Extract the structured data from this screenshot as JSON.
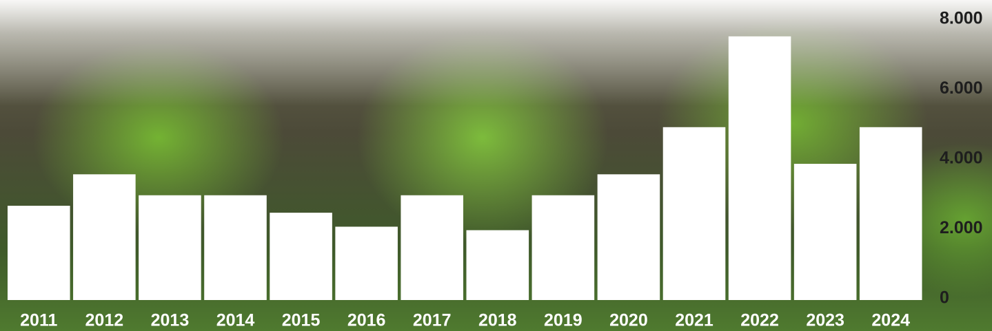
{
  "chart_data": {
    "type": "bar",
    "categories": [
      "2011",
      "2012",
      "2013",
      "2014",
      "2015",
      "2016",
      "2017",
      "2018",
      "2019",
      "2020",
      "2021",
      "2022",
      "2023",
      "2024"
    ],
    "values": [
      2700,
      3600,
      3000,
      3000,
      2500,
      2100,
      3000,
      2000,
      3000,
      3600,
      4950,
      7550,
      3900,
      4950
    ],
    "color": "#ffffff",
    "ylim": [
      0,
      8000
    ],
    "yticks": [
      0,
      {
        "value": 2000,
        "label": "2.000"
      },
      {
        "value": 4000,
        "label": "4.000"
      },
      {
        "value": 6000,
        "label": "6.000"
      },
      {
        "value": 8000,
        "label": "8.000"
      }
    ],
    "grid": false
  }
}
